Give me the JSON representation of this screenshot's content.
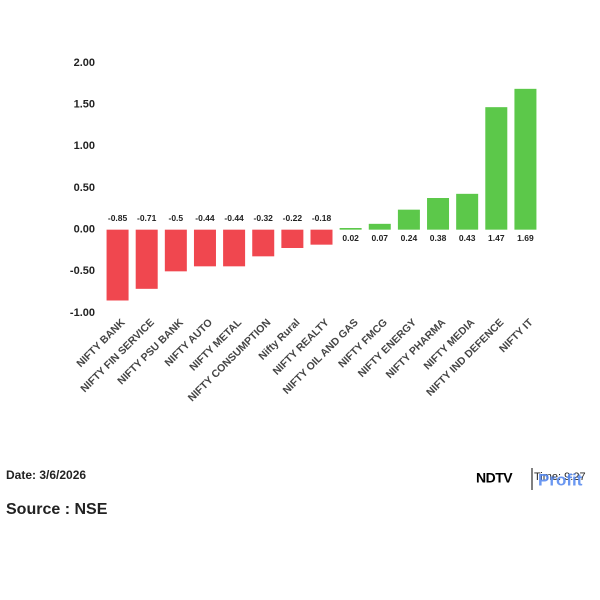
{
  "chart_data": {
    "type": "bar",
    "categories": [
      "NIFTY BANK",
      "NIFTY FIN SERVICE",
      "NIFTY PSU BANK",
      "NIFTY AUTO",
      "NIFTY METAL",
      "NIFTY CONSUMPTION",
      "Nifty Rural",
      "NIFTY REALTY",
      "NIFTY OIL AND GAS",
      "NIFTY FMCG",
      "NIFTY ENERGY",
      "NIFTY PHARMA",
      "NIFTY MEDIA",
      "NIFTY IND DEFENCE",
      "NIFTY IT"
    ],
    "values": [
      -0.85,
      -0.71,
      -0.5,
      -0.44,
      -0.44,
      -0.32,
      -0.22,
      -0.18,
      0.02,
      0.07,
      0.24,
      0.38,
      0.43,
      1.47,
      1.69
    ],
    "positive_color": "#5cc84a",
    "negative_color": "#f0474f",
    "ylim": [
      -1,
      2
    ],
    "yticks": [
      {
        "value": 2,
        "label": "2.00"
      },
      {
        "value": 1.5,
        "label": "1.50"
      },
      {
        "value": 1,
        "label": "1.00"
      },
      {
        "value": 0.5,
        "label": "0.50"
      },
      {
        "value": 0,
        "label": "0.00"
      },
      {
        "value": -0.5,
        "label": "-0.50"
      },
      {
        "value": -1,
        "label": "-1.00"
      }
    ],
    "grid": false
  },
  "footer": {
    "date": "Date: 3/6/2026",
    "source": "Source : NSE",
    "time": "Time: 9:27",
    "logo": "NDTV",
    "logo_sub": "Profit"
  }
}
